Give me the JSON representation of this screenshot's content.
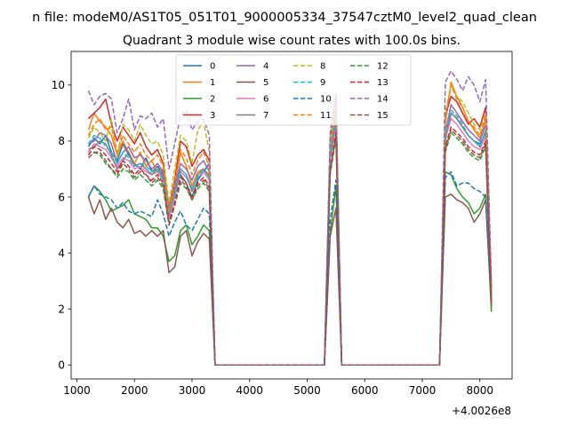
{
  "chart_data": {
    "type": "line",
    "suptitle": "n file: modeM0/AS1T05_051T01_9000005334_37547cztM0_level2_quad_clean",
    "title": "Quadrant 3 module wise count rates with 100.0s bins.",
    "xlabel": "",
    "ylabel": "",
    "x_offset_label": "+4.0026e8",
    "xlim": [
      900,
      8560
    ],
    "ylim": [
      -0.5,
      11.2
    ],
    "xticks": [
      1000,
      2000,
      3000,
      4000,
      5000,
      6000,
      7000,
      8000
    ],
    "yticks": [
      0,
      2,
      4,
      6,
      8,
      10
    ],
    "grid": false,
    "legend_placement": "upper center, 4 columns",
    "x": [
      1200,
      1300,
      1400,
      1500,
      1600,
      1700,
      1800,
      1900,
      2000,
      2100,
      2200,
      2300,
      2400,
      2500,
      2600,
      2700,
      2800,
      2900,
      3000,
      3100,
      3200,
      3300,
      3400,
      3500,
      3600,
      3700,
      3800,
      3900,
      4000,
      4100,
      4200,
      4300,
      4400,
      4500,
      4600,
      4700,
      4800,
      4900,
      5000,
      5100,
      5200,
      5300,
      5400,
      5500,
      5600,
      5700,
      5800,
      5900,
      6000,
      6100,
      6200,
      6300,
      6400,
      6500,
      6600,
      6700,
      6800,
      6900,
      7000,
      7100,
      7200,
      7300,
      7400,
      7500,
      7600,
      7700,
      7800,
      7900,
      8000,
      8100,
      8200
    ],
    "series": [
      {
        "name": "0",
        "color": "#1f77b4",
        "dash": "solid",
        "values": [
          7.8,
          8.1,
          7.9,
          8.2,
          7.6,
          7.3,
          7.9,
          7.5,
          7.2,
          7.0,
          7.4,
          6.9,
          7.1,
          6.8,
          5.6,
          6.2,
          6.8,
          6.5,
          6.0,
          6.6,
          6.9,
          7.2,
          0,
          0,
          0,
          0,
          0,
          0,
          0,
          0,
          0,
          0,
          0,
          0,
          0,
          0,
          0,
          0,
          0,
          0,
          0,
          0,
          7.5,
          8.9,
          0,
          0,
          0,
          0,
          0,
          0,
          0,
          0,
          0,
          0,
          0,
          0,
          0,
          0,
          0,
          0,
          0,
          0,
          8.0,
          9.0,
          8.8,
          8.5,
          8.2,
          8.0,
          7.9,
          8.3,
          2.0
        ]
      },
      {
        "name": "1",
        "color": "#ff7f0e",
        "dash": "solid",
        "values": [
          8.4,
          9.0,
          8.7,
          8.5,
          8.2,
          7.5,
          8.0,
          7.6,
          7.2,
          7.6,
          7.1,
          7.3,
          6.9,
          7.0,
          5.3,
          6.4,
          7.6,
          7.1,
          6.4,
          6.9,
          7.0,
          6.8,
          0,
          0,
          0,
          0,
          0,
          0,
          0,
          0,
          0,
          0,
          0,
          0,
          0,
          0,
          0,
          0,
          0,
          0,
          0,
          0,
          7.8,
          9.2,
          0,
          0,
          0,
          0,
          0,
          0,
          0,
          0,
          0,
          0,
          0,
          0,
          0,
          0,
          0,
          0,
          0,
          0,
          8.6,
          10.1,
          9.6,
          9.2,
          8.7,
          8.4,
          8.1,
          8.8,
          2.6
        ]
      },
      {
        "name": "2",
        "color": "#2ca02c",
        "dash": "solid",
        "values": [
          6.0,
          6.4,
          6.2,
          5.9,
          5.5,
          5.6,
          5.7,
          5.9,
          5.4,
          5.3,
          5.2,
          4.9,
          4.9,
          4.6,
          3.7,
          3.9,
          4.8,
          5.0,
          4.3,
          4.6,
          5.0,
          4.8,
          0,
          0,
          0,
          0,
          0,
          0,
          0,
          0,
          0,
          0,
          0,
          0,
          0,
          0,
          0,
          0,
          0,
          0,
          0,
          0,
          4.7,
          6.4,
          0,
          0,
          0,
          0,
          0,
          0,
          0,
          0,
          0,
          0,
          0,
          0,
          0,
          0,
          0,
          0,
          0,
          0,
          6.9,
          6.8,
          6.3,
          6.0,
          5.8,
          5.4,
          5.6,
          6.1,
          1.9
        ]
      },
      {
        "name": "3",
        "color": "#d62728",
        "dash": "solid",
        "values": [
          8.8,
          9.0,
          9.2,
          9.5,
          8.6,
          8.0,
          8.5,
          8.2,
          7.9,
          8.3,
          7.8,
          7.5,
          7.7,
          7.2,
          5.6,
          6.6,
          8.0,
          7.8,
          7.1,
          7.5,
          7.7,
          7.3,
          0,
          0,
          0,
          0,
          0,
          0,
          0,
          0,
          0,
          0,
          0,
          0,
          0,
          0,
          0,
          0,
          0,
          0,
          0,
          0,
          8.0,
          9.5,
          0,
          0,
          0,
          0,
          0,
          0,
          0,
          0,
          0,
          0,
          0,
          0,
          0,
          0,
          0,
          0,
          0,
          0,
          8.9,
          9.6,
          9.4,
          9.0,
          8.6,
          8.8,
          8.5,
          9.2,
          2.8
        ]
      },
      {
        "name": "4",
        "color": "#9467bd",
        "dash": "solid",
        "values": [
          7.9,
          8.0,
          8.3,
          8.2,
          7.9,
          7.2,
          7.6,
          7.8,
          7.4,
          7.5,
          7.3,
          7.0,
          7.2,
          6.9,
          5.7,
          6.3,
          7.2,
          7.0,
          6.6,
          7.1,
          7.3,
          6.9,
          0,
          0,
          0,
          0,
          0,
          0,
          0,
          0,
          0,
          0,
          0,
          0,
          0,
          0,
          0,
          0,
          0,
          0,
          0,
          0,
          7.6,
          9.0,
          0,
          0,
          0,
          0,
          0,
          0,
          0,
          0,
          0,
          0,
          0,
          0,
          0,
          0,
          0,
          0,
          0,
          0,
          8.3,
          9.3,
          9.0,
          8.7,
          8.4,
          8.2,
          8.0,
          8.6,
          2.4
        ]
      },
      {
        "name": "5",
        "color": "#8c564b",
        "dash": "solid",
        "values": [
          6.0,
          5.4,
          5.9,
          5.2,
          5.6,
          5.1,
          4.9,
          5.2,
          4.7,
          4.8,
          4.6,
          4.8,
          4.6,
          4.8,
          3.3,
          3.5,
          4.6,
          4.8,
          3.9,
          4.4,
          4.7,
          4.5,
          0,
          0,
          0,
          0,
          0,
          0,
          0,
          0,
          0,
          0,
          0,
          0,
          0,
          0,
          0,
          0,
          0,
          0,
          0,
          0,
          4.6,
          5.6,
          0,
          0,
          0,
          0,
          0,
          0,
          0,
          0,
          0,
          0,
          0,
          0,
          0,
          0,
          0,
          0,
          0,
          0,
          6.0,
          6.1,
          5.9,
          5.8,
          5.6,
          5.1,
          5.4,
          5.9,
          2.1
        ]
      },
      {
        "name": "6",
        "color": "#e377c2",
        "dash": "solid",
        "values": [
          7.6,
          7.9,
          7.8,
          7.7,
          7.4,
          7.1,
          7.4,
          7.3,
          7.0,
          7.1,
          6.9,
          6.8,
          6.9,
          6.6,
          5.2,
          6.0,
          6.9,
          6.7,
          6.3,
          6.7,
          6.9,
          6.6,
          0,
          0,
          0,
          0,
          0,
          0,
          0,
          0,
          0,
          0,
          0,
          0,
          0,
          0,
          0,
          0,
          0,
          0,
          0,
          0,
          7.3,
          8.6,
          0,
          0,
          0,
          0,
          0,
          0,
          0,
          0,
          0,
          0,
          0,
          0,
          0,
          0,
          0,
          0,
          0,
          0,
          8.1,
          8.8,
          8.6,
          8.3,
          8.0,
          7.8,
          7.7,
          8.2,
          2.3
        ]
      },
      {
        "name": "7",
        "color": "#7f7f7f",
        "dash": "solid",
        "values": [
          7.7,
          7.8,
          8.0,
          7.9,
          7.5,
          7.0,
          7.3,
          7.6,
          7.1,
          7.2,
          7.0,
          6.8,
          7.0,
          6.7,
          5.4,
          6.1,
          7.0,
          6.8,
          6.2,
          6.8,
          7.0,
          6.7,
          0,
          0,
          0,
          0,
          0,
          0,
          0,
          0,
          0,
          0,
          0,
          0,
          0,
          0,
          0,
          0,
          0,
          0,
          0,
          0,
          7.4,
          8.8,
          0,
          0,
          0,
          0,
          0,
          0,
          0,
          0,
          0,
          0,
          0,
          0,
          0,
          0,
          0,
          0,
          0,
          0,
          8.2,
          9.0,
          8.8,
          8.5,
          8.2,
          8.0,
          7.8,
          8.4,
          2.4
        ]
      },
      {
        "name": "8",
        "color": "#bcbd22",
        "dash": "dashed",
        "values": [
          8.1,
          8.5,
          8.3,
          8.0,
          8.8,
          7.4,
          8.6,
          8.4,
          8.0,
          8.6,
          8.2,
          7.9,
          8.0,
          7.5,
          5.8,
          7.0,
          8.2,
          8.0,
          7.2,
          8.4,
          8.7,
          7.6,
          0,
          0,
          0,
          0,
          0,
          0,
          0,
          0,
          0,
          0,
          0,
          0,
          0,
          0,
          0,
          0,
          0,
          0,
          0,
          0,
          7.9,
          9.4,
          0,
          0,
          0,
          0,
          0,
          0,
          0,
          0,
          0,
          0,
          0,
          0,
          0,
          0,
          0,
          0,
          0,
          0,
          9.0,
          10.0,
          9.6,
          9.4,
          9.0,
          8.6,
          8.4,
          9.0,
          2.6
        ]
      },
      {
        "name": "9",
        "color": "#17becf",
        "dash": "dashed",
        "values": [
          7.9,
          8.2,
          8.1,
          7.8,
          7.6,
          7.2,
          7.6,
          7.4,
          7.1,
          7.2,
          7.1,
          6.9,
          7.0,
          6.6,
          5.4,
          6.1,
          7.0,
          6.8,
          6.3,
          6.7,
          7.0,
          6.7,
          0,
          0,
          0,
          0,
          0,
          0,
          0,
          0,
          0,
          0,
          0,
          0,
          0,
          0,
          0,
          0,
          0,
          0,
          0,
          0,
          7.5,
          8.9,
          0,
          0,
          0,
          0,
          0,
          0,
          0,
          0,
          0,
          0,
          0,
          0,
          0,
          0,
          0,
          0,
          0,
          0,
          8.3,
          9.1,
          8.9,
          8.6,
          8.2,
          8.0,
          7.8,
          8.4,
          2.3
        ]
      },
      {
        "name": "10",
        "color": "#1f77b4",
        "dash": "dashed",
        "values": [
          6.0,
          6.4,
          6.1,
          6.0,
          5.9,
          5.6,
          5.8,
          5.5,
          5.4,
          5.5,
          5.4,
          5.3,
          5.9,
          5.4,
          4.6,
          5.1,
          5.5,
          5.0,
          4.8,
          5.2,
          5.6,
          5.4,
          0,
          0,
          0,
          0,
          0,
          0,
          0,
          0,
          0,
          0,
          0,
          0,
          0,
          0,
          0,
          0,
          0,
          0,
          0,
          0,
          5.2,
          6.6,
          0,
          0,
          0,
          0,
          0,
          0,
          0,
          0,
          0,
          0,
          0,
          0,
          0,
          0,
          0,
          0,
          0,
          0,
          6.7,
          6.9,
          6.4,
          6.5,
          6.5,
          6.3,
          6.2,
          6.0,
          2.2
        ]
      },
      {
        "name": "11",
        "color": "#ff7f0e",
        "dash": "dashed",
        "values": [
          8.2,
          8.6,
          8.8,
          8.4,
          8.5,
          7.6,
          8.2,
          7.9,
          7.6,
          7.9,
          7.5,
          7.3,
          7.5,
          7.1,
          5.5,
          6.5,
          7.7,
          7.4,
          6.8,
          7.3,
          7.6,
          7.1,
          0,
          0,
          0,
          0,
          0,
          0,
          0,
          0,
          0,
          0,
          0,
          0,
          0,
          0,
          0,
          0,
          0,
          0,
          0,
          0,
          7.8,
          9.3,
          0,
          0,
          0,
          0,
          0,
          0,
          0,
          0,
          0,
          0,
          0,
          0,
          0,
          0,
          0,
          0,
          0,
          0,
          8.8,
          10.0,
          9.5,
          9.2,
          8.7,
          8.5,
          8.2,
          8.9,
          2.7
        ]
      },
      {
        "name": "12",
        "color": "#2ca02c",
        "dash": "dashed",
        "values": [
          7.4,
          7.6,
          7.5,
          7.2,
          7.0,
          6.7,
          7.0,
          6.9,
          6.6,
          6.8,
          6.6,
          6.4,
          6.6,
          6.3,
          5.0,
          5.7,
          6.5,
          6.3,
          5.9,
          6.3,
          6.5,
          6.2,
          0,
          0,
          0,
          0,
          0,
          0,
          0,
          0,
          0,
          0,
          0,
          0,
          0,
          0,
          0,
          0,
          0,
          0,
          0,
          0,
          6.8,
          8.1,
          0,
          0,
          0,
          0,
          0,
          0,
          0,
          0,
          0,
          0,
          0,
          0,
          0,
          0,
          0,
          0,
          0,
          0,
          7.6,
          8.3,
          8.1,
          7.9,
          7.6,
          7.4,
          7.3,
          7.8,
          2.2
        ]
      },
      {
        "name": "13",
        "color": "#d62728",
        "dash": "dashed",
        "values": [
          7.5,
          7.8,
          7.7,
          7.5,
          7.2,
          6.9,
          7.3,
          7.1,
          6.8,
          7.0,
          6.8,
          6.6,
          6.8,
          6.5,
          5.1,
          5.8,
          6.7,
          6.5,
          6.0,
          6.5,
          6.7,
          6.4,
          0,
          0,
          0,
          0,
          0,
          0,
          0,
          0,
          0,
          0,
          0,
          0,
          0,
          0,
          0,
          0,
          0,
          0,
          0,
          0,
          7.0,
          8.3,
          0,
          0,
          0,
          0,
          0,
          0,
          0,
          0,
          0,
          0,
          0,
          0,
          0,
          0,
          0,
          0,
          0,
          0,
          7.8,
          8.5,
          8.3,
          8.1,
          7.8,
          7.6,
          7.5,
          8.0,
          2.3
        ]
      },
      {
        "name": "14",
        "color": "#9467bd",
        "dash": "dashed",
        "values": [
          9.8,
          9.3,
          9.6,
          9.7,
          9.5,
          8.3,
          8.8,
          9.5,
          8.4,
          8.9,
          8.8,
          9.0,
          8.5,
          8.8,
          7.0,
          7.9,
          8.9,
          9.1,
          8.4,
          8.7,
          8.8,
          8.2,
          0,
          0,
          0,
          0,
          0,
          0,
          0,
          0,
          0,
          0,
          0,
          0,
          0,
          0,
          0,
          0,
          0,
          0,
          0,
          0,
          8.3,
          9.7,
          0,
          0,
          0,
          0,
          0,
          0,
          0,
          0,
          0,
          0,
          0,
          0,
          0,
          0,
          0,
          0,
          0,
          0,
          10.1,
          10.5,
          10.2,
          9.8,
          10.3,
          10.0,
          9.4,
          10.2,
          3.0
        ]
      },
      {
        "name": "15",
        "color": "#8c564b",
        "dash": "dashed",
        "values": [
          7.4,
          7.6,
          7.6,
          7.3,
          7.0,
          6.8,
          7.2,
          7.0,
          6.7,
          6.9,
          6.8,
          6.5,
          6.7,
          6.4,
          5.0,
          5.7,
          6.6,
          6.4,
          5.9,
          6.4,
          6.6,
          6.3,
          0,
          0,
          0,
          0,
          0,
          0,
          0,
          0,
          0,
          0,
          0,
          0,
          0,
          0,
          0,
          0,
          0,
          0,
          0,
          0,
          6.9,
          8.2,
          0,
          0,
          0,
          0,
          0,
          0,
          0,
          0,
          0,
          0,
          0,
          0,
          0,
          0,
          0,
          0,
          0,
          0,
          7.7,
          8.4,
          8.2,
          8.0,
          7.7,
          7.5,
          7.4,
          7.9,
          2.2
        ]
      }
    ]
  }
}
